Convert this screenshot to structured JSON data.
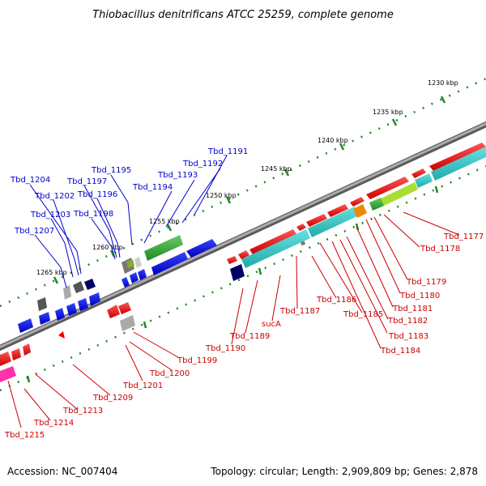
{
  "title": "Thiobacillus denitrificans ATCC 25259, complete genome",
  "footer": {
    "accession": "Accession: NC_007404",
    "summary": "Topology: circular; Length: 2,909,809 bp; Genes: 2,878"
  },
  "scale_labels": [
    "1230 kbp",
    "1235 kbp",
    "1240 kbp",
    "1245 kbp",
    "1250 kbp",
    "1255 kbp",
    "1260 kbp",
    "1265 kbp"
  ],
  "blue_labels": [
    "Tbd_1191",
    "Tbd_1192",
    "Tbd_1193",
    "Tbd_1194",
    "Tbd_1195",
    "Tbd_1196",
    "Tbd_1197",
    "Tbd_1198",
    "Tbd_1202",
    "Tbd_1203",
    "Tbd_1204",
    "Tbd_1207"
  ],
  "red_labels": [
    "Tbd_1177",
    "Tbd_1178",
    "Tbd_1179",
    "Tbd_1180",
    "Tbd_1181",
    "Tbd_1182",
    "Tbd_1183",
    "Tbd_1184",
    "Tbd_1185",
    "Tbd_1186",
    "Tbd_1187",
    "sucA",
    "Tbd_1189",
    "Tbd_1190",
    "Tbd_1199",
    "Tbd_1200",
    "Tbd_1201",
    "Tbd_1209",
    "Tbd_1213",
    "Tbd_1214",
    "Tbd_1215"
  ],
  "colors": {
    "backbone": "#8a8a8a",
    "forward_gene": "#ff0000",
    "reverse_gene": "#0000ee",
    "cyan_gene": "#33cccc",
    "green_gene": "#33aa33",
    "tick": "#228822",
    "blue_label": "#0000cc",
    "red_label": "#cc0000"
  }
}
